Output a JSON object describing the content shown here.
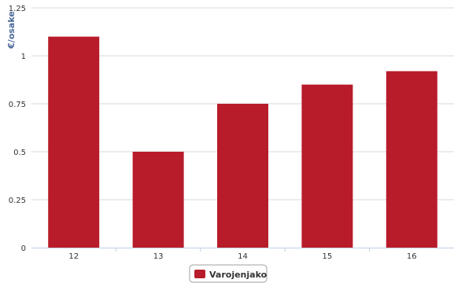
{
  "chart_data": {
    "type": "bar",
    "categories": [
      "12",
      "13",
      "14",
      "15",
      "16"
    ],
    "series": [
      {
        "name": "Varojenjako",
        "values": [
          1.1,
          0.5,
          0.75,
          0.85,
          0.92
        ]
      }
    ],
    "ylabel": "€/osake",
    "xlabel": "",
    "title": "",
    "ylim": [
      0,
      1.25
    ],
    "yticks": [
      "0",
      "0.25",
      "0.5",
      "0.75",
      "1",
      "1.25"
    ],
    "grid": true,
    "legend_position": "bottom-center",
    "colors": {
      "bar": "#b81c2a",
      "grid": "#d8d8d8",
      "axis": "#c0d0e0",
      "axis_title": "#4a6a9a"
    }
  }
}
